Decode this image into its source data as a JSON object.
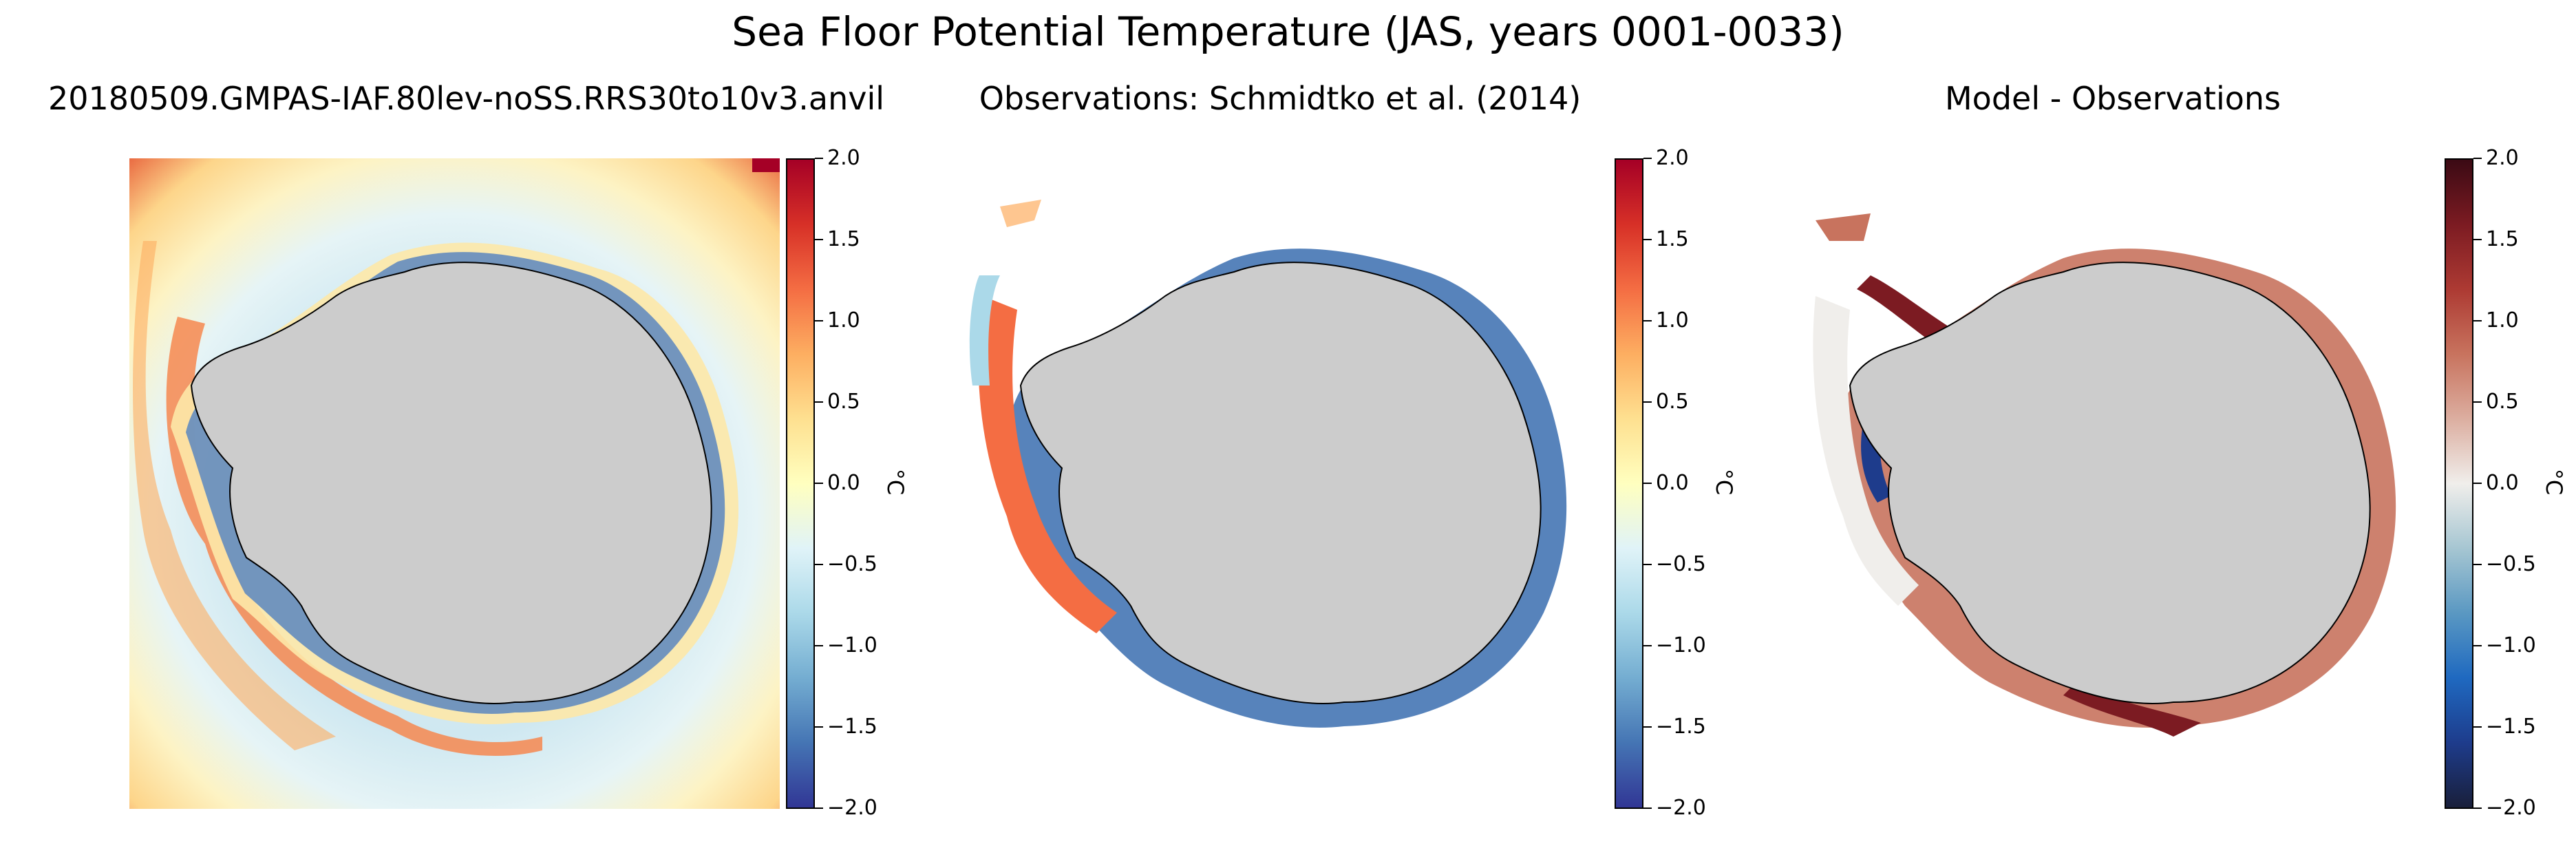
{
  "figure": {
    "title": "Sea Floor Potential Temperature (JAS, years 0001-0033)"
  },
  "panels": [
    {
      "id": "model",
      "title": "20180509.GMPAS-IAF.80lev-noSS.RRS30to10v3.anvil",
      "colorbar": {
        "unit": "°C",
        "ticks": [
          "2.0",
          "1.5",
          "1.0",
          "0.5",
          "0.0",
          "−0.5",
          "−1.0",
          "−1.5",
          "−2.0"
        ],
        "range": [
          -2.0,
          2.0
        ],
        "colormap": "RdYlBu_r",
        "colors": [
          "#313695",
          "#4575b4",
          "#74add1",
          "#abd9e9",
          "#e0f3f8",
          "#ffffbf",
          "#fee090",
          "#fdae61",
          "#f46d43",
          "#d73027",
          "#a50026"
        ]
      }
    },
    {
      "id": "observations",
      "title": "Observations: Schmidtko et al. (2014)",
      "colorbar": {
        "unit": "°C",
        "ticks": [
          "2.0",
          "1.5",
          "1.0",
          "0.5",
          "0.0",
          "−0.5",
          "−1.0",
          "−1.5",
          "−2.0"
        ],
        "range": [
          -2.0,
          2.0
        ],
        "colormap": "RdYlBu_r",
        "colors": [
          "#313695",
          "#4575b4",
          "#74add1",
          "#abd9e9",
          "#e0f3f8",
          "#ffffbf",
          "#fee090",
          "#fdae61",
          "#f46d43",
          "#d73027",
          "#a50026"
        ]
      }
    },
    {
      "id": "bias",
      "title": "Model - Observations",
      "colorbar": {
        "unit": "°C",
        "ticks": [
          "2.0",
          "1.5",
          "1.0",
          "0.5",
          "0.0",
          "−0.5",
          "−1.0",
          "−1.5",
          "−2.0"
        ],
        "range": [
          -2.0,
          2.0
        ],
        "colormap": "balance",
        "colors": [
          "#191f3a",
          "#1e3c8c",
          "#1f69c0",
          "#5a98c2",
          "#a6c6d2",
          "#f0eeeb",
          "#dcaea0",
          "#c8735e",
          "#ad3a33",
          "#7c1b22",
          "#3b0a14"
        ]
      }
    }
  ],
  "map_colors": {
    "land": "#cccccc",
    "coastline": "#000000"
  }
}
